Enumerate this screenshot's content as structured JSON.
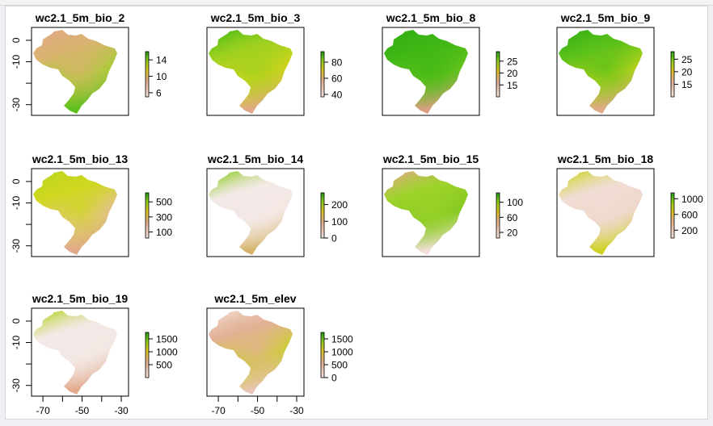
{
  "chart_data": {
    "type": "heatmap",
    "layout": "3x4 raster panel grid",
    "xlim": [
      -75,
      -30
    ],
    "ylim": [
      -35,
      6
    ],
    "x_ticks": [
      -70,
      -60,
      -50,
      -40,
      -30
    ],
    "x_tick_labels": [
      "-70",
      "-50",
      "-30"
    ],
    "y_ticks": [
      0,
      -10,
      -20,
      -30
    ],
    "y_tick_labels": [
      "0",
      "-10",
      "-30"
    ],
    "panels": [
      {
        "title": "wc2.1_5m_bio_2",
        "range": [
          5,
          16
        ],
        "ticks": [
          "6",
          "10",
          "14"
        ],
        "tick_values": [
          6,
          10,
          14
        ],
        "colors": [
          "#e2a98a",
          "#d9b36f",
          "#9fd12a",
          "#5cbf1c"
        ]
      },
      {
        "title": "wc2.1_5m_bio_3",
        "range": [
          37,
          93
        ],
        "ticks": [
          "40",
          "60",
          "80"
        ],
        "tick_values": [
          40,
          60,
          80
        ],
        "colors": [
          "#4bbb17",
          "#9fd11f",
          "#d9d21a",
          "#e0a987"
        ]
      },
      {
        "title": "wc2.1_5m_bio_8",
        "range": [
          10,
          29
        ],
        "ticks": [
          "15",
          "20",
          "25"
        ],
        "tick_values": [
          15,
          20,
          25
        ],
        "colors": [
          "#2fad12",
          "#3fb715",
          "#6ac51c",
          "#d9a083"
        ]
      },
      {
        "title": "wc2.1_5m_bio_9",
        "range": [
          10,
          28
        ],
        "ticks": [
          "15",
          "20",
          "25"
        ],
        "tick_values": [
          15,
          20,
          25
        ],
        "colors": [
          "#2fad12",
          "#5cc11a",
          "#c8d51b",
          "#e0a987"
        ]
      },
      {
        "title": "wc2.1_5m_bio_13",
        "range": [
          20,
          620
        ],
        "ticks": [
          "100",
          "300",
          "500"
        ],
        "tick_values": [
          100,
          300,
          500
        ],
        "colors": [
          "#b9d61d",
          "#cfd81e",
          "#e7bda3",
          "#e2a98a"
        ]
      },
      {
        "title": "wc2.1_5m_bio_14",
        "range": [
          0,
          270
        ],
        "ticks": [
          "0",
          "100",
          "200"
        ],
        "tick_values": [
          0,
          100,
          200
        ],
        "colors": [
          "#8bcb1f",
          "#f3e9e6",
          "#f3e7e3",
          "#d5b56a"
        ]
      },
      {
        "title": "wc2.1_5m_bio_15",
        "range": [
          5,
          125
        ],
        "ticks": [
          "20",
          "60",
          "100"
        ],
        "tick_values": [
          20,
          60,
          100
        ],
        "colors": [
          "#e2a98a",
          "#9ed32a",
          "#7fc61f",
          "#f1dfd8"
        ]
      },
      {
        "title": "wc2.1_5m_bio_18",
        "range": [
          0,
          1150
        ],
        "ticks": [
          "200",
          "600",
          "1000"
        ],
        "tick_values": [
          200,
          600,
          1000
        ],
        "colors": [
          "#c9d61e",
          "#f0ddd4",
          "#eed3c6",
          "#cdd322"
        ]
      },
      {
        "title": "wc2.1_5m_bio_19",
        "range": [
          0,
          1750
        ],
        "ticks": [
          "500",
          "1000",
          "1500"
        ],
        "tick_values": [
          500,
          1000,
          1500
        ],
        "colors": [
          "#b5d21e",
          "#f3e9e6",
          "#f2e6e2",
          "#e2a98a"
        ]
      },
      {
        "title": "wc2.1_5m_elev",
        "range": [
          0,
          1750
        ],
        "ticks": [
          "0",
          "500",
          "1000",
          "1500"
        ],
        "tick_values": [
          0,
          500,
          1000,
          1500
        ],
        "colors": [
          "#f1dcd3",
          "#e2b093",
          "#c7d420",
          "#e8c4b3"
        ]
      }
    ]
  }
}
